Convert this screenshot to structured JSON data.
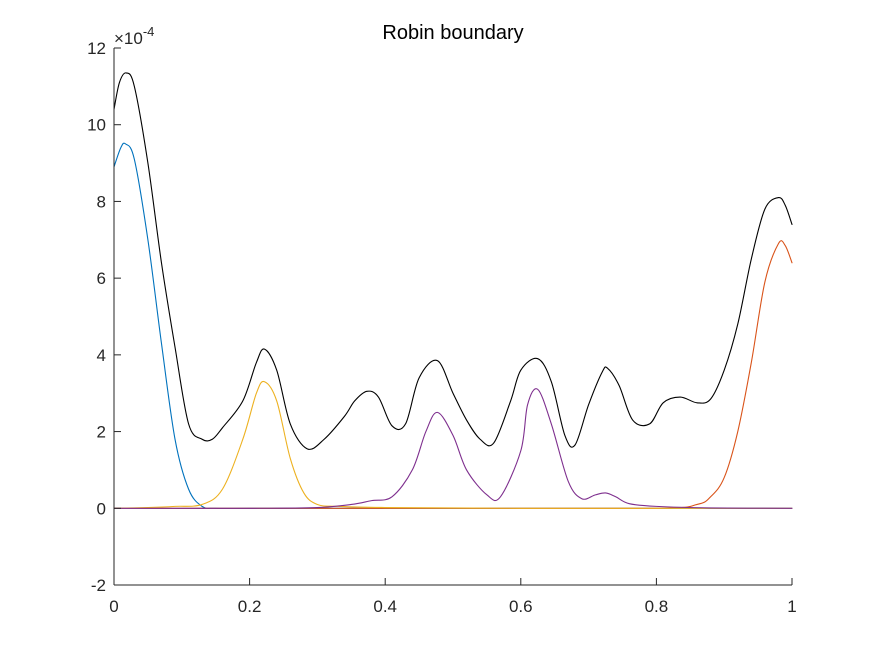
{
  "chart_data": {
    "type": "line",
    "title": "Robin boundary",
    "xlabel": "",
    "ylabel": "",
    "xlim": [
      0,
      1
    ],
    "ylim": [
      -2,
      12
    ],
    "y_exponent_label": "×10",
    "y_exponent_power": "-4",
    "x_ticks": [
      {
        "value": 0,
        "label": "0"
      },
      {
        "value": 0.2,
        "label": "0.2"
      },
      {
        "value": 0.4,
        "label": "0.4"
      },
      {
        "value": 0.6,
        "label": "0.6"
      },
      {
        "value": 0.8,
        "label": "0.8"
      },
      {
        "value": 1,
        "label": "1"
      }
    ],
    "y_ticks": [
      {
        "value": -2,
        "label": "-2"
      },
      {
        "value": 0,
        "label": "0"
      },
      {
        "value": 2,
        "label": "2"
      },
      {
        "value": 4,
        "label": "4"
      },
      {
        "value": 6,
        "label": "6"
      },
      {
        "value": 8,
        "label": "8"
      },
      {
        "value": 10,
        "label": "10"
      },
      {
        "value": 12,
        "label": "12"
      }
    ],
    "grid": false,
    "series": [
      {
        "color": "#0072BD",
        "x": [
          0,
          0.01,
          0.017,
          0.03,
          0.05,
          0.07,
          0.09,
          0.11,
          0.13,
          0.15,
          0.2,
          0.3,
          0.5,
          0.7,
          1.0
        ],
        "y": [
          8.9,
          9.4,
          9.5,
          9.1,
          7.0,
          4.3,
          1.8,
          0.5,
          0.05,
          0.0,
          0.0,
          0.0,
          0.0,
          0.0,
          0.0
        ]
      },
      {
        "color": "#D95319",
        "x": [
          0,
          0.5,
          0.8,
          0.86,
          0.88,
          0.9,
          0.92,
          0.94,
          0.96,
          0.98,
          0.99,
          1.0
        ],
        "y": [
          0,
          0,
          0,
          0.1,
          0.3,
          0.8,
          2.0,
          3.8,
          5.9,
          6.9,
          6.85,
          6.4
        ]
      },
      {
        "color": "#EDB120",
        "x": [
          0,
          0.05,
          0.09,
          0.13,
          0.16,
          0.19,
          0.21,
          0.222,
          0.24,
          0.26,
          0.28,
          0.3,
          0.33,
          0.4,
          0.6,
          0.8,
          1.0
        ],
        "y": [
          0,
          0.02,
          0.05,
          0.1,
          0.5,
          1.8,
          3.0,
          3.3,
          2.8,
          1.3,
          0.4,
          0.1,
          0.05,
          0.02,
          0.0,
          0.0,
          0.0
        ]
      },
      {
        "color": "#7E2F8E",
        "x": [
          0,
          0.2,
          0.3,
          0.35,
          0.38,
          0.41,
          0.44,
          0.46,
          0.477,
          0.5,
          0.52,
          0.55,
          0.57,
          0.6,
          0.61,
          0.625,
          0.645,
          0.67,
          0.69,
          0.71,
          0.725,
          0.74,
          0.76,
          0.8,
          0.88,
          1.0
        ],
        "y": [
          0,
          0,
          0.02,
          0.1,
          0.2,
          0.3,
          1.0,
          2.0,
          2.5,
          1.9,
          1.0,
          0.35,
          0.3,
          1.5,
          2.7,
          3.1,
          2.2,
          0.7,
          0.25,
          0.35,
          0.4,
          0.3,
          0.12,
          0.05,
          0.01,
          0.0
        ]
      },
      {
        "color": "#000000",
        "x": [
          0,
          0.008,
          0.018,
          0.03,
          0.05,
          0.07,
          0.09,
          0.11,
          0.13,
          0.145,
          0.16,
          0.19,
          0.21,
          0.222,
          0.24,
          0.26,
          0.285,
          0.31,
          0.34,
          0.355,
          0.373,
          0.39,
          0.41,
          0.43,
          0.45,
          0.477,
          0.5,
          0.52,
          0.54,
          0.56,
          0.585,
          0.6,
          0.625,
          0.645,
          0.665,
          0.68,
          0.7,
          0.72,
          0.728,
          0.745,
          0.765,
          0.79,
          0.81,
          0.835,
          0.86,
          0.88,
          0.9,
          0.92,
          0.94,
          0.96,
          0.98,
          0.99,
          1.0
        ],
        "y": [
          10.4,
          11.1,
          11.35,
          11.0,
          9.0,
          6.4,
          4.2,
          2.2,
          1.8,
          1.8,
          2.1,
          2.8,
          3.8,
          4.15,
          3.6,
          2.2,
          1.55,
          1.8,
          2.4,
          2.8,
          3.05,
          2.9,
          2.15,
          2.2,
          3.4,
          3.85,
          3.0,
          2.3,
          1.8,
          1.7,
          2.8,
          3.6,
          3.9,
          3.3,
          1.9,
          1.65,
          2.7,
          3.55,
          3.65,
          3.2,
          2.3,
          2.2,
          2.75,
          2.9,
          2.75,
          2.85,
          3.6,
          4.8,
          6.5,
          7.8,
          8.1,
          7.9,
          7.4
        ]
      }
    ]
  }
}
